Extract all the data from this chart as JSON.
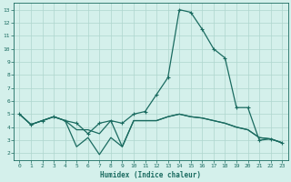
{
  "xlabel": "Humidex (Indice chaleur)",
  "x": [
    0,
    1,
    2,
    3,
    4,
    5,
    6,
    7,
    8,
    9,
    10,
    11,
    12,
    13,
    14,
    15,
    16,
    17,
    18,
    19,
    20,
    21,
    22,
    23
  ],
  "line1": [
    5.0,
    4.2,
    4.5,
    4.8,
    4.5,
    4.3,
    3.5,
    4.3,
    4.5,
    4.3,
    5.0,
    5.2,
    6.5,
    7.8,
    13.0,
    12.8,
    11.5,
    10.0,
    9.3,
    5.5,
    5.5,
    3.0,
    3.1,
    2.8
  ],
  "line2": [
    5.0,
    4.2,
    4.5,
    4.8,
    4.5,
    3.8,
    3.8,
    3.5,
    4.5,
    2.5,
    4.5,
    4.5,
    4.5,
    4.8,
    5.0,
    4.8,
    4.7,
    4.5,
    4.3,
    4.0,
    3.8,
    3.2,
    3.1,
    2.8
  ],
  "line3": [
    5.0,
    4.2,
    4.5,
    4.8,
    4.5,
    2.5,
    3.2,
    1.9,
    3.2,
    2.5,
    4.5,
    4.5,
    4.5,
    4.8,
    5.0,
    4.8,
    4.7,
    4.5,
    4.3,
    4.0,
    3.8,
    3.2,
    3.1,
    2.8
  ],
  "line_color": "#1a6b60",
  "bg_color": "#d4f0eb",
  "grid_color": "#aed6ce",
  "ylim": [
    1.5,
    13.5
  ],
  "xlim": [
    -0.5,
    23.5
  ],
  "yticks": [
    2,
    3,
    4,
    5,
    6,
    7,
    8,
    9,
    10,
    11,
    12,
    13
  ],
  "xticks": [
    0,
    1,
    2,
    3,
    4,
    5,
    6,
    7,
    8,
    9,
    10,
    11,
    12,
    13,
    14,
    15,
    16,
    17,
    18,
    19,
    20,
    21,
    22,
    23
  ],
  "markersize": 3.5,
  "linewidth": 0.9
}
